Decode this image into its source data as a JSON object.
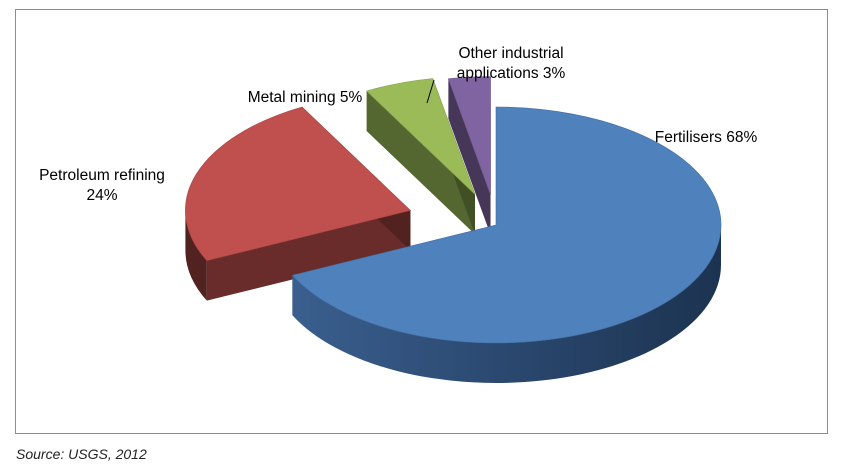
{
  "chart_data": {
    "type": "pie",
    "title": "",
    "slices": [
      {
        "label_lines": [
          "Fertilisers 68%"
        ],
        "category": "Fertilisers",
        "value": 68,
        "color": "#4f81bd",
        "exploded": false
      },
      {
        "label_lines": [
          "Petroleum refining",
          "24%"
        ],
        "category": "Petroleum refining",
        "value": 24,
        "color": "#c0504d",
        "exploded": true
      },
      {
        "label_lines": [
          "Metal mining 5%"
        ],
        "category": "Metal mining",
        "value": 5,
        "color": "#9bbb59",
        "exploded": true
      },
      {
        "label_lines": [
          "Other industrial",
          "applications 3%"
        ],
        "category": "Other industrial applications",
        "value": 3,
        "color": "#8064a2",
        "exploded": true
      }
    ],
    "legend": "none",
    "style": "3d-exploded-pie"
  },
  "source": "Source: USGS, 2012"
}
